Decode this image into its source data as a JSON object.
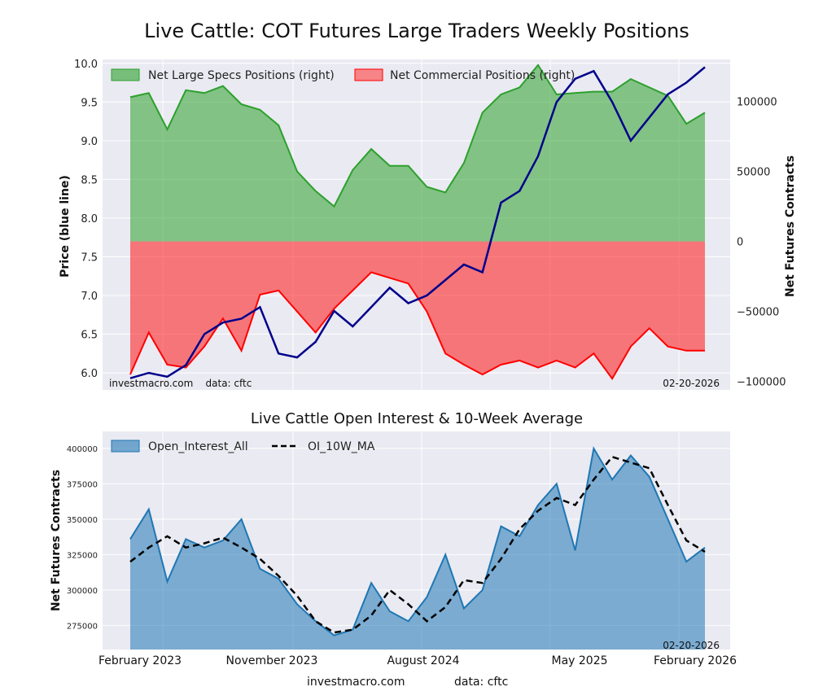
{
  "chart_data": [
    {
      "type": "area",
      "title": "Live Cattle: COT Futures Large Traders Weekly Positions",
      "ylabel_left": "Price (blue line)",
      "ylabel_right": "Net Futures Contracts",
      "ylim_left": [
        5.78,
        10.05
      ],
      "ylim_right": [
        -106000,
        130000
      ],
      "left_ticks": [
        "10.0",
        "9.5",
        "9.0",
        "8.5",
        "8.0",
        "7.5",
        "7.0",
        "6.5",
        "6.0"
      ],
      "right_ticks": [
        "100000",
        "50000",
        "0",
        "−50000",
        "−100000"
      ],
      "left_tick_values": [
        10.0,
        9.5,
        9.0,
        8.5,
        8.0,
        7.5,
        7.0,
        6.5,
        6.0
      ],
      "right_tick_values": [
        100000,
        50000,
        0,
        -50000,
        -100000
      ],
      "legend": [
        "Net Large Specs Positions (right)",
        "Net Commercial Positions (right)"
      ],
      "watermark_left": "investmacro.com    data: cftc",
      "date_label": "02-20-2026",
      "series": [
        {
          "name": "Net Large Specs Positions (right)",
          "color": "#2ca02c",
          "week_values_every_4": [
            103000,
            106000,
            80000,
            108000,
            106000,
            111000,
            98000,
            94000,
            83000,
            50000,
            36000,
            25000,
            51000,
            66000,
            54000,
            54000,
            39000,
            35000,
            56000,
            92000,
            105000,
            110000,
            126000,
            105000,
            106000,
            107000,
            107000,
            116000,
            110000,
            104000,
            84000,
            92000
          ],
          "sampled": true
        },
        {
          "name": "Net Commercial Positions (right)",
          "color": "#ff0000",
          "week_values_every_4": [
            -95000,
            -65000,
            -88000,
            -90000,
            -75000,
            -55000,
            -78000,
            -38000,
            -35000,
            -50000,
            -65000,
            -48000,
            -35000,
            -22000,
            -26000,
            -30000,
            -50000,
            -80000,
            -88000,
            -95000,
            -88000,
            -85000,
            -90000,
            -85000,
            -90000,
            -80000,
            -98000,
            -75000,
            -62000,
            -75000,
            -78000,
            -78000
          ],
          "sampled": true
        },
        {
          "name": "Price (blue line)",
          "color": "#00008b",
          "week_values_every_4": [
            5.93,
            6.0,
            5.95,
            6.1,
            6.5,
            6.65,
            6.7,
            6.85,
            6.25,
            6.2,
            6.4,
            6.8,
            6.6,
            6.85,
            7.1,
            6.9,
            7.0,
            7.2,
            7.4,
            7.3,
            8.2,
            8.35,
            8.8,
            9.5,
            9.8,
            9.9,
            9.5,
            9.0,
            9.3,
            9.6,
            9.75,
            9.95
          ],
          "sampled": true
        }
      ]
    },
    {
      "type": "area",
      "title": "Live Cattle Open Interest & 10-Week Average",
      "ylabel": "Net Futures Contracts",
      "ylim": [
        258000,
        412000
      ],
      "ticks": [
        "400000",
        "375000",
        "350000",
        "325000",
        "300000",
        "275000"
      ],
      "tick_values": [
        400000,
        375000,
        350000,
        325000,
        300000,
        275000
      ],
      "x_tick_labels": [
        "February 2023",
        "November 2023",
        "August 2024",
        "May 2025",
        "February 2026"
      ],
      "legend": [
        "Open_Interest_All",
        "OI_10W_MA"
      ],
      "date_label": "02-20-2026",
      "series": [
        {
          "name": "Open_Interest_All",
          "color": "#1f77b4",
          "week_values_every_4": [
            336000,
            357000,
            306000,
            336000,
            330000,
            335000,
            350000,
            315000,
            308000,
            290000,
            278000,
            268000,
            272000,
            305000,
            285000,
            278000,
            295000,
            325000,
            287000,
            300000,
            345000,
            338000,
            360000,
            375000,
            328000,
            400000,
            378000,
            395000,
            380000,
            350000,
            320000,
            330000
          ],
          "sampled": true
        },
        {
          "name": "OI_10W_MA",
          "color": "#000000",
          "week_values_every_4": [
            320000,
            330000,
            338000,
            330000,
            333000,
            337000,
            330000,
            322000,
            310000,
            296000,
            278000,
            270000,
            272000,
            282000,
            300000,
            290000,
            278000,
            288000,
            307000,
            305000,
            322000,
            343000,
            356000,
            365000,
            360000,
            378000,
            394000,
            390000,
            386000,
            360000,
            335000,
            327000
          ],
          "sampled": true
        }
      ]
    }
  ],
  "footer": {
    "site": "investmacro.com",
    "source": "data: cftc"
  }
}
